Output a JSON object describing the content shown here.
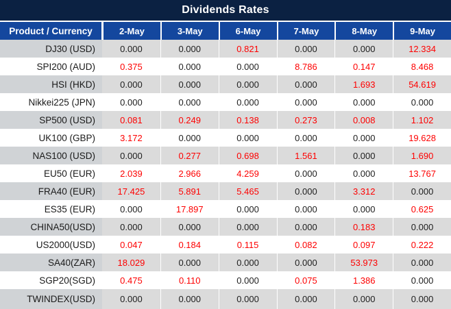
{
  "chart_data": {
    "type": "table",
    "title": "Dividends Rates",
    "row_header_label": "Product / Currency",
    "columns": [
      "2-May",
      "3-May",
      "6-May",
      "7-May",
      "8-May",
      "9-May"
    ],
    "rows": [
      {
        "product": "DJ30 (USD)",
        "values": [
          "0.000",
          "0.000",
          "0.821",
          "0.000",
          "0.000",
          "12.334"
        ]
      },
      {
        "product": "SPI200 (AUD)",
        "values": [
          "0.375",
          "0.000",
          "0.000",
          "8.786",
          "0.147",
          "8.468"
        ]
      },
      {
        "product": "HSI (HKD)",
        "values": [
          "0.000",
          "0.000",
          "0.000",
          "0.000",
          "1.693",
          "54.619"
        ]
      },
      {
        "product": "Nikkei225 (JPN)",
        "values": [
          "0.000",
          "0.000",
          "0.000",
          "0.000",
          "0.000",
          "0.000"
        ]
      },
      {
        "product": "SP500 (USD)",
        "values": [
          "0.081",
          "0.249",
          "0.138",
          "0.273",
          "0.008",
          "1.102"
        ]
      },
      {
        "product": "UK100 (GBP)",
        "values": [
          "3.172",
          "0.000",
          "0.000",
          "0.000",
          "0.000",
          "19.628"
        ]
      },
      {
        "product": "NAS100 (USD)",
        "values": [
          "0.000",
          "0.277",
          "0.698",
          "1.561",
          "0.000",
          "1.690"
        ]
      },
      {
        "product": "EU50 (EUR)",
        "values": [
          "2.039",
          "2.966",
          "4.259",
          "0.000",
          "0.000",
          "13.767"
        ]
      },
      {
        "product": "FRA40 (EUR)",
        "values": [
          "17.425",
          "5.891",
          "5.465",
          "0.000",
          "3.312",
          "0.000"
        ]
      },
      {
        "product": "ES35 (EUR)",
        "values": [
          "0.000",
          "17.897",
          "0.000",
          "0.000",
          "0.000",
          "0.625"
        ]
      },
      {
        "product": "CHINA50(USD)",
        "values": [
          "0.000",
          "0.000",
          "0.000",
          "0.000",
          "0.183",
          "0.000"
        ]
      },
      {
        "product": "US2000(USD)",
        "values": [
          "0.047",
          "0.184",
          "0.115",
          "0.082",
          "0.097",
          "0.222"
        ]
      },
      {
        "product": "SA40(ZAR)",
        "values": [
          "18.029",
          "0.000",
          "0.000",
          "0.000",
          "53.973",
          "0.000"
        ]
      },
      {
        "product": "SGP20(SGD)",
        "values": [
          "0.475",
          "0.110",
          "0.000",
          "0.075",
          "1.386",
          "0.000"
        ]
      },
      {
        "product": "TWINDEX(USD)",
        "values": [
          "0.000",
          "0.000",
          "0.000",
          "0.000",
          "0.000",
          "0.000"
        ]
      }
    ],
    "layout": {
      "zero_values_color_rule": "zero values black, non-zero values red",
      "alternating_row_shading": "odd rows gray, even rows white"
    }
  },
  "colors": {
    "title_bar_bg": "#0B2142",
    "header_bg": "#14479E",
    "header_text": "#FFFFFF",
    "row_alt_bg": "#DBDBDB",
    "row_alt_product_bg": "#D0D3D6",
    "zero_value": "#1D1D1D",
    "nonzero_value": "#FE0000"
  }
}
